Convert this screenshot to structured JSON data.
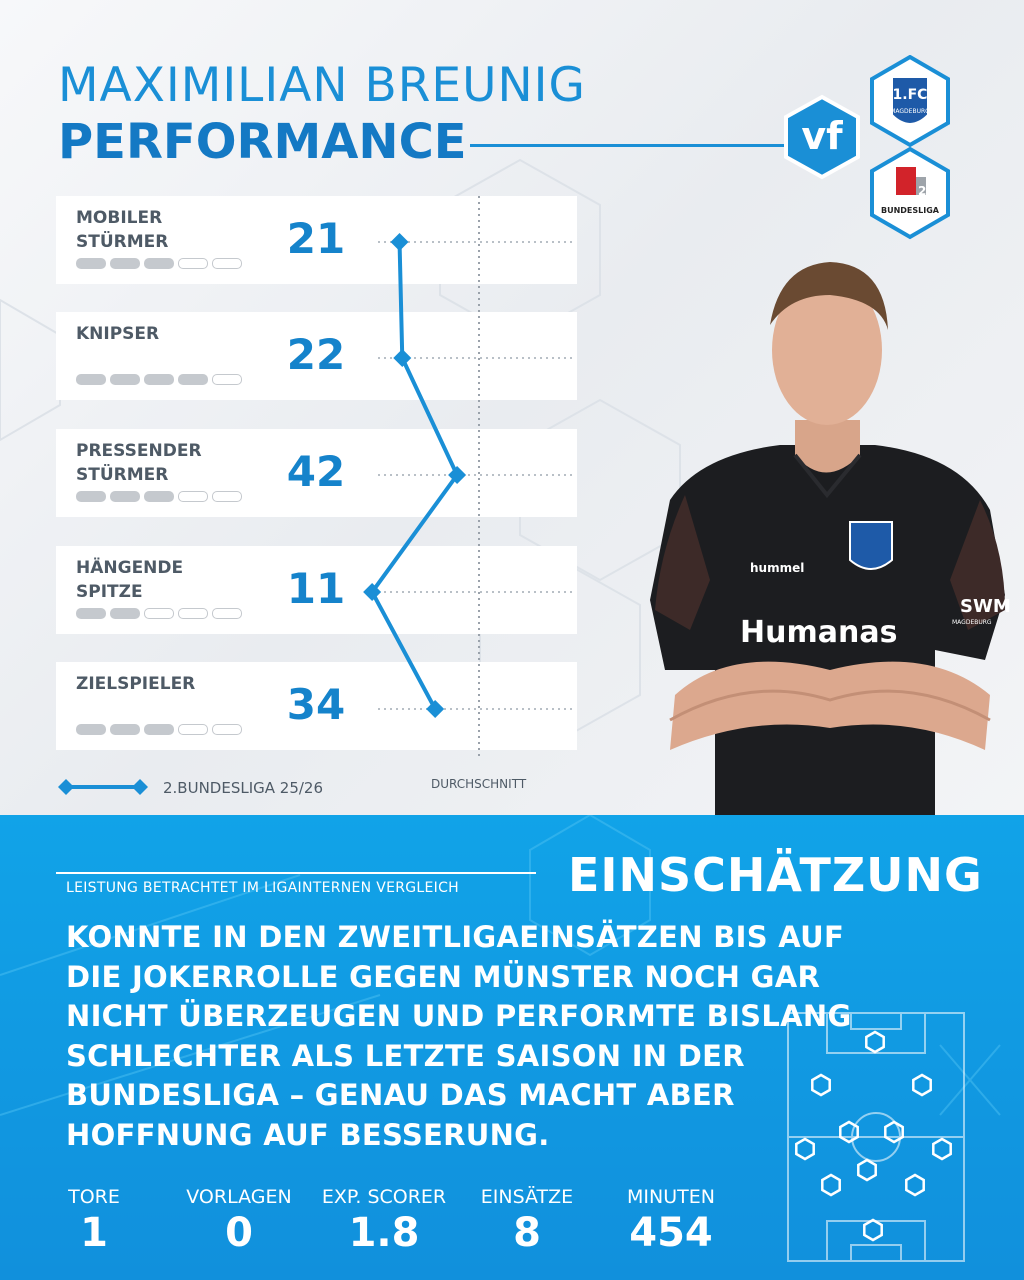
{
  "header": {
    "name": "MAXIMILIAN BREUNIG",
    "subtitle": "PERFORMANCE",
    "badge_text": "vf",
    "club_logo_text": "1.FC",
    "club_logo_city": "MAGDEBURG",
    "league_logo_text": "BUNDESLIGA"
  },
  "roles": [
    {
      "label": "MOBILER\nSTÜRMER",
      "value": "21",
      "rating": 3
    },
    {
      "label": "KNIPSER",
      "value": "22",
      "rating": 4
    },
    {
      "label": "PRESSENDER\nSTÜRMER",
      "value": "42",
      "rating": 3
    },
    {
      "label": "HÄNGENDE\nSPITZE",
      "value": "11",
      "rating": 2
    },
    {
      "label": "ZIELSPIELER",
      "value": "34",
      "rating": 3
    }
  ],
  "chart_data": {
    "type": "line",
    "categories": [
      "MOBILER STÜRMER",
      "KNIPSER",
      "PRESSENDER STÜRMER",
      "HÄNGENDE SPITZE",
      "ZIELSPIELER"
    ],
    "series": [
      {
        "name": "2.BUNDESLIGA 25/26",
        "values": [
          21,
          22,
          42,
          11,
          34
        ]
      }
    ],
    "reference_line": {
      "label": "DURCHSCHNITT",
      "value": 50
    },
    "xlim": [
      0,
      100
    ]
  },
  "legend": {
    "series_label": "2.BUNDESLIGA 25/26",
    "avg_label": "DURCHSCHNITT"
  },
  "shirt": {
    "brand": "hummel",
    "sponsor": "Humanas",
    "sleeve": "SWM",
    "sleeve2": "MAGDEBURG"
  },
  "assessment": {
    "context": "LEISTUNG BETRACHTET IM LIGAINTERNEN VERGLEICH",
    "heading": "EINSCHÄTZUNG",
    "text": "KONNTE IN DEN ZWEITLIGAEINSÄTZEN BIS AUF DIE JOKERROLLE GEGEN MÜNSTER NOCH GAR NICHT ÜBERZEUGEN UND PERFORMTE BISLANG SCHLECHTER ALS LETZTE SAISON IN DER BUNDESLIGA – GENAU DAS MACHT ABER HOFFNUNG AUF BESSERUNG."
  },
  "stats": [
    {
      "label": "TORE",
      "value": "1"
    },
    {
      "label": "VORLAGEN",
      "value": "0"
    },
    {
      "label": "EXP. SCORER",
      "value": "1.8"
    },
    {
      "label": "EINSÄTZE",
      "value": "8"
    },
    {
      "label": "MINUTEN",
      "value": "454"
    }
  ],
  "colors": {
    "accent": "#1a8fd6",
    "panel": "#11a3e8",
    "text_dark": "#4e5a66"
  }
}
